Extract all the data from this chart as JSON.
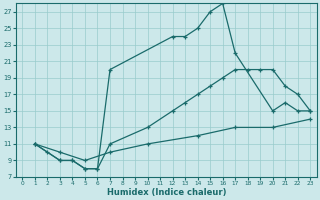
{
  "xlabel": "Humidex (Indice chaleur)",
  "bg_color": "#cce8ea",
  "grid_color": "#99cccc",
  "line_color": "#1a6b6b",
  "xlim": [
    -0.5,
    23.5
  ],
  "ylim": [
    7,
    28
  ],
  "xticks": [
    0,
    1,
    2,
    3,
    4,
    5,
    6,
    7,
    8,
    9,
    10,
    11,
    12,
    13,
    14,
    15,
    16,
    17,
    18,
    19,
    20,
    21,
    22,
    23
  ],
  "yticks": [
    7,
    9,
    11,
    13,
    15,
    17,
    19,
    21,
    23,
    25,
    27
  ],
  "line1_x": [
    1,
    2,
    3,
    4,
    5,
    6,
    7,
    12,
    13,
    14,
    15,
    16,
    17,
    20,
    21,
    22,
    23
  ],
  "line1_y": [
    11,
    10,
    9,
    9,
    8,
    8,
    20,
    24,
    24,
    25,
    27,
    28,
    22,
    15,
    16,
    15,
    15
  ],
  "line2_x": [
    1,
    3,
    4,
    5,
    6,
    7,
    10,
    12,
    13,
    14,
    15,
    16,
    17,
    18,
    19,
    20,
    21,
    22,
    23
  ],
  "line2_y": [
    11,
    9,
    9,
    8,
    8,
    11,
    13,
    15,
    16,
    17,
    18,
    19,
    20,
    20,
    20,
    20,
    18,
    17,
    15
  ],
  "line3_x": [
    1,
    3,
    5,
    7,
    10,
    14,
    17,
    20,
    23
  ],
  "line3_y": [
    11,
    10,
    9,
    10,
    11,
    12,
    13,
    13,
    14
  ]
}
